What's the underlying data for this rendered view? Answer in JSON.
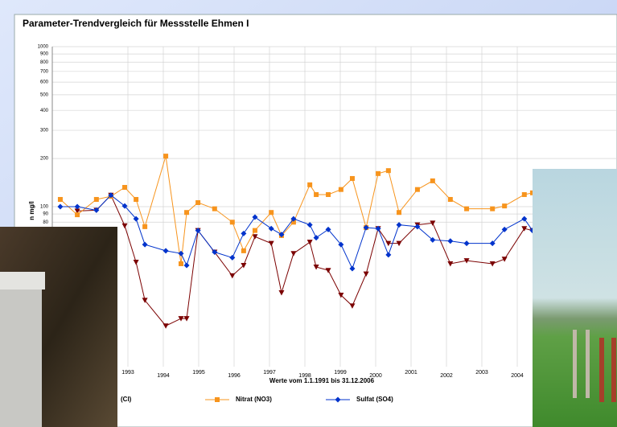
{
  "chart_data": {
    "type": "line",
    "title": "Parameter-Trendvergleich für Messstelle Ehmen I",
    "y_label": "n mg/l",
    "x_label": "Werte vom 1.1.1991 bis 31.12.2006",
    "log_y": true,
    "grid": true,
    "xlim": [
      1991,
      2007
    ],
    "ylim": [
      10,
      1000
    ],
    "xticks": [
      1993,
      1994,
      1995,
      1996,
      1997,
      1998,
      1999,
      2000,
      2001,
      2002,
      2003,
      2004
    ],
    "yticks": [
      80,
      90,
      100,
      200,
      300,
      400,
      500,
      600,
      700,
      800,
      900,
      1000
    ],
    "x": [
      1991.09,
      1991.57,
      1992.11,
      1992.52,
      1992.91,
      1993.23,
      1993.48,
      1994.07,
      1994.5,
      1994.66,
      1994.98,
      1995.45,
      1995.95,
      1996.27,
      1996.59,
      1997.05,
      1997.34,
      1997.68,
      1998.14,
      1998.32,
      1998.66,
      1999.02,
      1999.34,
      1999.73,
      2000.07,
      2000.36,
      2000.66,
      2001.18,
      2001.61,
      2002.11,
      2002.57,
      2003.3,
      2003.64,
      2004.2,
      2004.43
    ],
    "series": [
      {
        "name": "(Cl)",
        "color": "#7b0000",
        "marker": "triangle",
        "values": [
          null,
          94,
          95,
          118,
          76,
          45,
          26,
          18,
          20,
          20,
          71,
          52,
          37,
          43,
          65,
          59,
          29,
          51,
          60,
          42,
          40,
          28,
          24,
          38,
          73,
          59,
          59,
          77,
          79,
          44,
          46,
          44,
          47,
          73,
          71
        ]
      },
      {
        "name": "Nitrat (NO3)",
        "color": "#f7941d",
        "marker": "square",
        "values": [
          111,
          89,
          111,
          116,
          132,
          111,
          75,
          207,
          44,
          92,
          106,
          97,
          80,
          53,
          71,
          92,
          66,
          80,
          137,
          119,
          119,
          128,
          150,
          74,
          161,
          168,
          92,
          128,
          145,
          111,
          97,
          97,
          101,
          119,
          122
        ]
      },
      {
        "name": "Sulfat (SO4)",
        "color": "#0033cc",
        "marker": "diamond",
        "values": [
          100,
          100,
          95,
          118,
          101,
          84,
          58,
          53,
          51,
          43,
          71,
          52,
          48,
          68,
          86,
          73,
          67,
          84,
          77,
          64,
          72,
          58,
          41,
          74,
          73,
          50,
          77,
          75,
          62,
          61,
          59,
          59,
          72,
          84,
          71
        ]
      }
    ]
  }
}
